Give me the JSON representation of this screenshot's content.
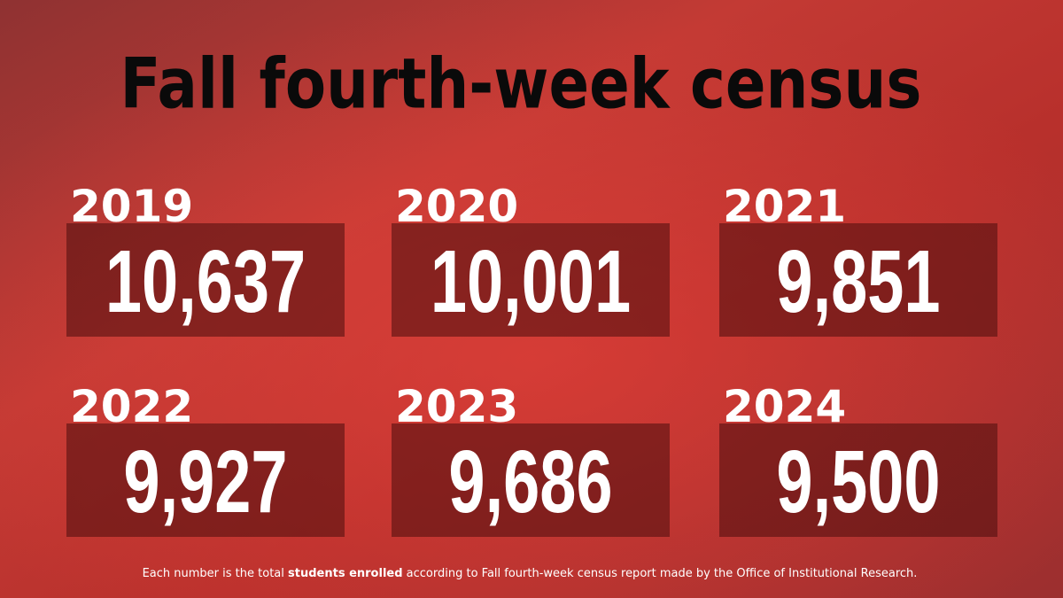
{
  "title": "Fall fourth-week census",
  "cards": [
    {
      "year": "2019",
      "count": "10,637"
    },
    {
      "year": "2020",
      "count": "10,001"
    },
    {
      "year": "2021",
      "count": "9,851"
    },
    {
      "year": "2022",
      "count": "9,927"
    },
    {
      "year": "2023",
      "count": "9,686"
    },
    {
      "year": "2024",
      "count": "9,500"
    }
  ],
  "footnote": {
    "before": "Each number is the total ",
    "bold": "students enrolled",
    "after": " according to Fall fourth-week census report made by the Office of Institutional Research."
  }
}
